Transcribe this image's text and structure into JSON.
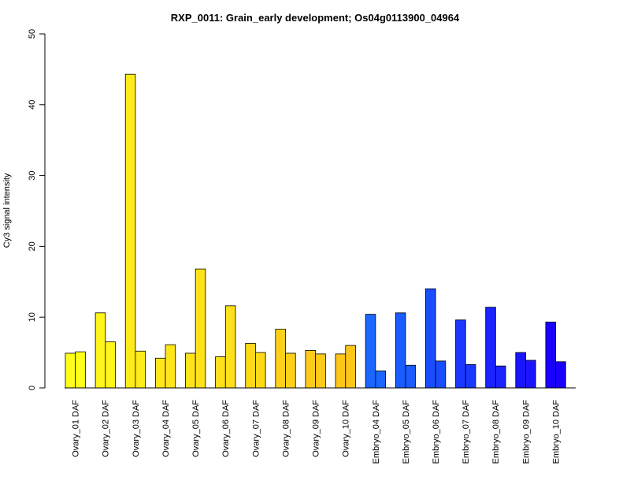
{
  "chart_data": {
    "type": "bar",
    "title": "RXP_0011: Grain_early development; Os04g0113900_04964",
    "xlabel": "",
    "ylabel": "Cy3 signal intensity",
    "ylim": [
      0,
      50
    ],
    "yticks": [
      0,
      10,
      20,
      30,
      40,
      50
    ],
    "grid": false,
    "legend": "none",
    "categories": [
      "Ovary_01 DAF",
      "Ovary_02 DAF",
      "Ovary_03 DAF",
      "Ovary_04 DAF",
      "Ovary_05 DAF",
      "Ovary_06 DAF",
      "Ovary_07 DAF",
      "Ovary_08 DAF",
      "Ovary_09 DAF",
      "Ovary_10 DAF",
      "Embryo_04 DAF",
      "Embryo_05 DAF",
      "Embryo_06 DAF",
      "Embryo_07 DAF",
      "Embryo_08 DAF",
      "Embryo_09 DAF",
      "Embryo_10 DAF"
    ],
    "series": [
      {
        "values": [
          4.9,
          10.6,
          44.3,
          4.2,
          4.9,
          4.4,
          6.3,
          8.3,
          5.3,
          4.8,
          10.4,
          10.6,
          14.0,
          9.6,
          11.4,
          5.0,
          9.3
        ]
      },
      {
        "values": [
          5.1,
          6.5,
          5.2,
          6.1,
          16.8,
          11.6,
          5.0,
          4.9,
          4.8,
          6.0,
          2.4,
          3.2,
          3.8,
          3.3,
          3.1,
          3.9,
          3.7
        ]
      }
    ],
    "colors": [
      "#ffff1a",
      "#fff51a",
      "#ffeb1a",
      "#ffe61a",
      "#ffe21a",
      "#ffe01a",
      "#ffd81a",
      "#ffd01a",
      "#ffcb1a",
      "#ffc61a",
      "#1a66ff",
      "#1a5cff",
      "#1a4dff",
      "#1a38ff",
      "#1a24ff",
      "#1a14ff",
      "#1a00ff"
    ]
  }
}
